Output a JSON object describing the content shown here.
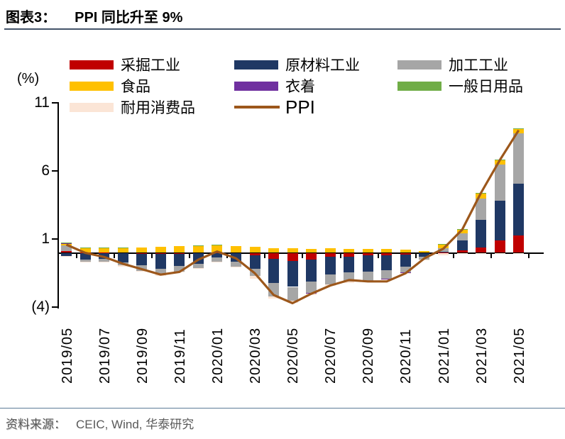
{
  "title": {
    "tag": "图表3：",
    "text": "PPI 同比升至 9%"
  },
  "y_axis": {
    "unit_label": "(%)",
    "ticks": [
      {
        "value": 11,
        "label": "11"
      },
      {
        "value": 6,
        "label": "6"
      },
      {
        "value": 1,
        "label": "1"
      },
      {
        "value": -4,
        "label": "(4)"
      }
    ]
  },
  "legend": [
    {
      "label": "采掘工业",
      "color": "#C00000",
      "type": "box"
    },
    {
      "label": "原材料工业",
      "color": "#1F3864",
      "type": "box"
    },
    {
      "label": "加工工业",
      "color": "#A6A6A6",
      "type": "box"
    },
    {
      "label": "食品",
      "color": "#FFC000",
      "type": "box"
    },
    {
      "label": "衣着",
      "color": "#7030A0",
      "type": "box"
    },
    {
      "label": "一般日用品",
      "color": "#70AD47",
      "type": "box"
    },
    {
      "label": "耐用消费品",
      "color": "#FBE5D6",
      "type": "box"
    },
    {
      "label": "PPI",
      "color": "#9C571B",
      "type": "line"
    }
  ],
  "chart_data": {
    "type": "bar",
    "subtype": "stacked-bars-with-line",
    "title": "PPI 同比升至 9%",
    "unit": "%",
    "ylim": [
      -4,
      11
    ],
    "y_ticks": [
      11,
      6,
      1,
      -4
    ],
    "grid": false,
    "x_label_interval": 2,
    "categories": [
      "2019/05",
      "2019/06",
      "2019/07",
      "2019/08",
      "2019/09",
      "2019/10",
      "2019/11",
      "2019/12",
      "2020/01",
      "2020/02",
      "2020/03",
      "2020/04",
      "2020/05",
      "2020/06",
      "2020/07",
      "2020/08",
      "2020/09",
      "2020/10",
      "2020/11",
      "2020/12",
      "2021/01",
      "2021/02",
      "2021/03",
      "2021/04",
      "2021/05"
    ],
    "shown_x_labels": [
      "2019/05",
      "2019/07",
      "2019/09",
      "2019/11",
      "2020/01",
      "2020/03",
      "2020/05",
      "2020/07",
      "2020/09",
      "2020/11",
      "2021/01",
      "2021/03",
      "2021/05"
    ],
    "series": [
      {
        "name": "采掘工业",
        "color": "#C00000",
        "values": [
          0.15,
          0.03,
          0.02,
          -0.03,
          -0.08,
          -0.1,
          -0.08,
          -0.05,
          0.02,
          -0.05,
          -0.2,
          -0.45,
          -0.6,
          -0.5,
          -0.3,
          -0.3,
          -0.2,
          -0.2,
          -0.15,
          -0.03,
          0.03,
          0.2,
          0.4,
          0.9,
          1.3
        ]
      },
      {
        "name": "原材料工业",
        "color": "#1F3864",
        "values": [
          -0.25,
          -0.5,
          -0.45,
          -0.65,
          -0.85,
          -1.05,
          -0.9,
          -0.75,
          -0.35,
          -0.6,
          -0.95,
          -1.75,
          -1.9,
          -1.6,
          -1.3,
          -1.15,
          -1.2,
          -1.1,
          -0.85,
          -0.25,
          0.05,
          0.7,
          2.0,
          2.95,
          3.8
        ]
      },
      {
        "name": "加工工业",
        "color": "#A6A6A6",
        "values": [
          0.4,
          -0.15,
          -0.2,
          -0.25,
          -0.4,
          -0.45,
          -0.4,
          -0.3,
          -0.3,
          -0.35,
          -0.55,
          -1.0,
          -1.0,
          -0.85,
          -0.7,
          -0.65,
          -0.65,
          -0.6,
          -0.45,
          -0.2,
          0.25,
          0.55,
          1.6,
          2.65,
          3.7
        ]
      },
      {
        "name": "食品",
        "color": "#FFC000",
        "values": [
          0.15,
          0.35,
          0.35,
          0.35,
          0.38,
          0.45,
          0.5,
          0.5,
          0.55,
          0.5,
          0.45,
          0.35,
          0.35,
          0.3,
          0.35,
          0.28,
          0.28,
          0.28,
          0.22,
          0.12,
          0.32,
          0.3,
          0.35,
          0.3,
          0.3
        ]
      },
      {
        "name": "衣着",
        "color": "#7030A0",
        "values": [
          0.02,
          0,
          0,
          0,
          0,
          0,
          0,
          0,
          0.02,
          0,
          0,
          0,
          -0.03,
          -0.03,
          -0.02,
          -0.02,
          -0.03,
          -0.03,
          -0.03,
          -0.02,
          0,
          0,
          0,
          0,
          0
        ]
      },
      {
        "name": "一般日用品",
        "color": "#70AD47",
        "values": [
          0.02,
          0.03,
          0.03,
          0.02,
          0,
          0,
          0,
          0.03,
          0.03,
          0,
          0,
          0,
          0,
          0,
          0,
          0,
          0,
          0,
          0,
          0,
          0.02,
          0.02,
          0.03,
          0.03,
          0.04
        ]
      },
      {
        "name": "耐用消费品",
        "color": "#FBE5D6",
        "values": [
          -0.05,
          -0.07,
          -0.06,
          -0.07,
          -0.07,
          -0.07,
          -0.06,
          -0.05,
          -0.05,
          -0.06,
          -0.2,
          -0.15,
          -0.15,
          -0.1,
          -0.1,
          -0.08,
          -0.05,
          -0.05,
          -0.04,
          -0.04,
          -0.2,
          -0.05,
          -0.05,
          -0.05,
          -0.05
        ]
      }
    ],
    "line_series": {
      "name": "PPI",
      "color": "#9C571B",
      "values": [
        0.6,
        0.0,
        -0.3,
        -0.8,
        -1.2,
        -1.6,
        -1.4,
        -0.5,
        0.1,
        -0.4,
        -1.5,
        -3.1,
        -3.7,
        -3.0,
        -2.4,
        -2.0,
        -2.1,
        -2.1,
        -1.5,
        -0.4,
        0.3,
        1.7,
        4.4,
        6.8,
        9.0
      ]
    },
    "legend_position": "top"
  },
  "footer": {
    "source_label": "资料来源：",
    "source_text": "CEIC, Wind, 华泰研究"
  }
}
